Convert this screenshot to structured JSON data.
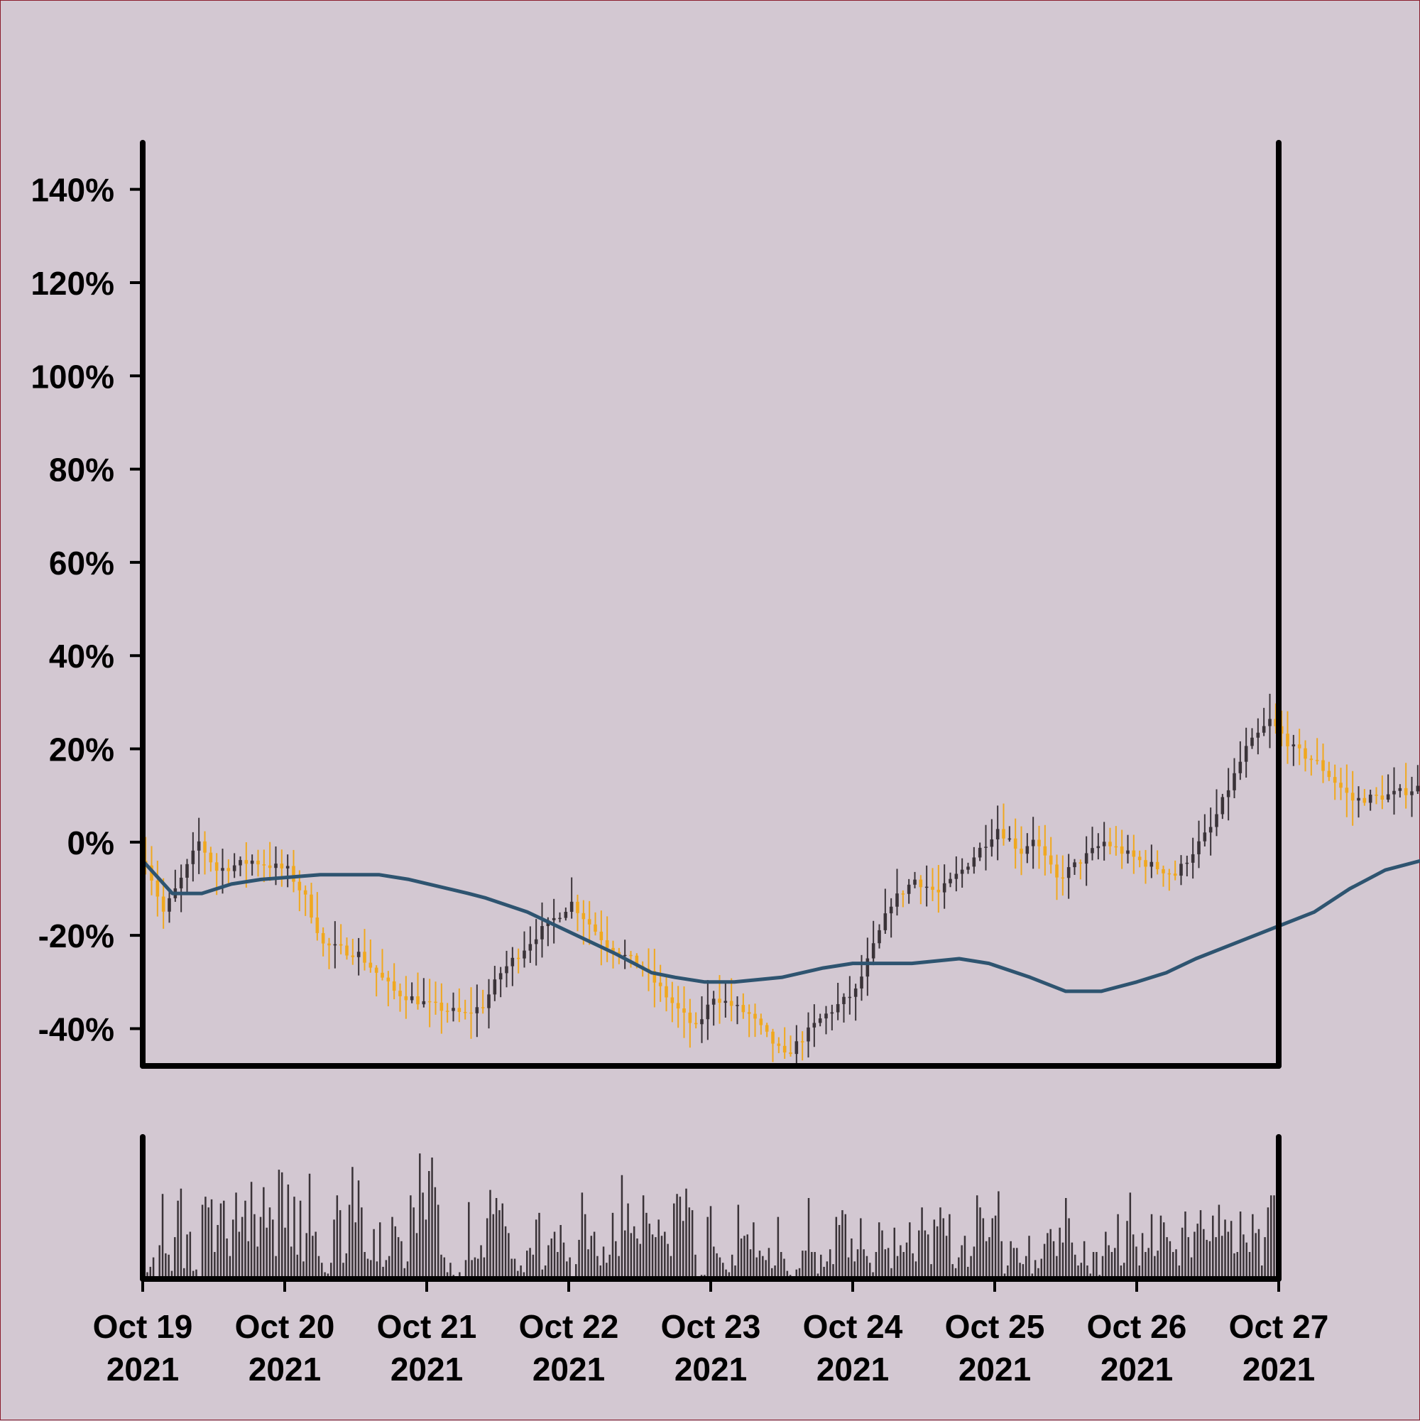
{
  "theme": {
    "background": "#d3c8d2",
    "frame_border": "#8a1c2c",
    "candle_up": "#3a3338",
    "candle_down": "#f0a81e",
    "moving_average": "#2e5470",
    "volume_bars": "#3a3338",
    "axes": "#000000"
  },
  "chart_data": {
    "type": "candlestick",
    "title": "",
    "xlabel": "",
    "ylabel": "",
    "ylim": [
      -48,
      150
    ],
    "yticks": [
      -40,
      -20,
      0,
      20,
      40,
      60,
      80,
      100,
      120,
      140
    ],
    "ytick_labels": [
      "-40%",
      "-20%",
      "0%",
      "20%",
      "40%",
      "60%",
      "80%",
      "100%",
      "120%",
      "140%"
    ],
    "xlim": [
      "2021-10-19",
      "2021-10-27"
    ],
    "xticks": [
      "2021-10-19",
      "2021-10-20",
      "2021-10-21",
      "2021-10-22",
      "2021-10-23",
      "2021-10-24",
      "2021-10-25",
      "2021-10-26",
      "2021-10-27"
    ],
    "xtick_labels": [
      {
        "line1": "Oct 19",
        "line2": "2021"
      },
      {
        "line1": "Oct 20",
        "line2": "2021"
      },
      {
        "line1": "Oct 21",
        "line2": "2021"
      },
      {
        "line1": "Oct 22",
        "line2": "2021"
      },
      {
        "line1": "Oct 23",
        "line2": "2021"
      },
      {
        "line1": "Oct 24",
        "line2": "2021"
      },
      {
        "line1": "Oct 25",
        "line2": "2021"
      },
      {
        "line1": "Oct 26",
        "line2": "2021"
      },
      {
        "line1": "Oct 27",
        "line2": "2021"
      }
    ],
    "bar_interval_hours": 1,
    "close_path": [
      [
        0,
        -4
      ],
      [
        3,
        -15
      ],
      [
        6,
        -8
      ],
      [
        9,
        0
      ],
      [
        12,
        -6
      ],
      [
        18,
        -4
      ],
      [
        24,
        -6
      ],
      [
        27,
        -12
      ],
      [
        30,
        -22
      ],
      [
        36,
        -24
      ],
      [
        42,
        -32
      ],
      [
        48,
        -35
      ],
      [
        54,
        -37
      ],
      [
        57,
        -35
      ],
      [
        60,
        -28
      ],
      [
        66,
        -20
      ],
      [
        72,
        -13
      ],
      [
        78,
        -22
      ],
      [
        84,
        -27
      ],
      [
        90,
        -36
      ],
      [
        93,
        -40
      ],
      [
        96,
        -33
      ],
      [
        102,
        -37
      ],
      [
        108,
        -46
      ],
      [
        114,
        -38
      ],
      [
        120,
        -32
      ],
      [
        126,
        -13
      ],
      [
        130,
        -8
      ],
      [
        134,
        -11
      ],
      [
        138,
        -6
      ],
      [
        144,
        3
      ],
      [
        148,
        -2
      ],
      [
        150,
        1
      ],
      [
        154,
        -8
      ],
      [
        158,
        -4
      ],
      [
        162,
        0
      ],
      [
        168,
        -4
      ],
      [
        174,
        -7
      ],
      [
        180,
        3
      ],
      [
        186,
        20
      ],
      [
        190,
        26
      ],
      [
        194,
        20
      ],
      [
        198,
        17
      ],
      [
        204,
        9
      ],
      [
        210,
        10
      ],
      [
        216,
        12
      ],
      [
        222,
        4
      ],
      [
        228,
        -5
      ],
      [
        234,
        4
      ],
      [
        240,
        0
      ],
      [
        246,
        -3
      ],
      [
        252,
        -6
      ],
      [
        258,
        -3
      ],
      [
        264,
        0
      ],
      [
        270,
        -6
      ]
    ],
    "moving_average": [
      [
        0,
        -4
      ],
      [
        5,
        -11
      ],
      [
        10,
        -11
      ],
      [
        15,
        -9
      ],
      [
        20,
        -8
      ],
      [
        30,
        -7
      ],
      [
        40,
        -7
      ],
      [
        45,
        -8
      ],
      [
        55,
        -11
      ],
      [
        58,
        -12
      ],
      [
        65,
        -15
      ],
      [
        70,
        -18
      ],
      [
        80,
        -24
      ],
      [
        86,
        -28
      ],
      [
        90,
        -29
      ],
      [
        95,
        -30
      ],
      [
        100,
        -30
      ],
      [
        108,
        -29
      ],
      [
        115,
        -27
      ],
      [
        120,
        -26
      ],
      [
        126,
        -26
      ],
      [
        130,
        -26
      ],
      [
        138,
        -25
      ],
      [
        143,
        -26
      ],
      [
        150,
        -29
      ],
      [
        156,
        -32
      ],
      [
        162,
        -32
      ],
      [
        168,
        -30
      ],
      [
        173,
        -28
      ],
      [
        178,
        -25
      ],
      [
        186,
        -21
      ],
      [
        192,
        -18
      ],
      [
        198,
        -15
      ],
      [
        204,
        -10
      ],
      [
        210,
        -6
      ],
      [
        216,
        -4
      ],
      [
        220,
        -4
      ],
      [
        224,
        -3
      ],
      [
        230,
        0
      ],
      [
        237,
        2
      ],
      [
        243,
        3
      ],
      [
        250,
        6
      ],
      [
        256,
        7.5
      ],
      [
        262,
        8
      ],
      [
        268,
        8
      ],
      [
        275,
        9
      ],
      [
        280,
        9
      ],
      [
        286,
        8
      ],
      [
        290,
        6
      ]
    ],
    "volume": {
      "ylim": [
        0,
        100
      ],
      "values": [
        52,
        5,
        9,
        16,
        1,
        25,
        63,
        19,
        18,
        6,
        31,
        58,
        67,
        8,
        33,
        35,
        6,
        7,
        0,
        55,
        61,
        53,
        59,
        20,
        40,
        56,
        58,
        30,
        17,
        44,
        64,
        35,
        46,
        58,
        28,
        72,
        48,
        24,
        46,
        68,
        38,
        53,
        44,
        17,
        81,
        79,
        38,
        70,
        24,
        61,
        18,
        58,
        13,
        34,
        78,
        32,
        35,
        17,
        12,
        5,
        4,
        12,
        44,
        62,
        51,
        12,
        19,
        55,
        83,
        42,
        73,
        53,
        20,
        15,
        14,
        37,
        13,
        42,
        9,
        14,
        17,
        46,
        39,
        31,
        28,
        8,
        13,
        62,
        53,
        34,
        93,
        64,
        44,
        80,
        90,
        68,
        55,
        18,
        16,
        5,
        12,
        3,
        2,
        5,
        2,
        14,
        57,
        14,
        16,
        15,
        25,
        16,
        45,
        66,
        48,
        60,
        51,
        56,
        39,
        34,
        15,
        15,
        6,
        10,
        5,
        21,
        23,
        18,
        44,
        49,
        7,
        10,
        25,
        30,
        35,
        20,
        40,
        27,
        13,
        16,
        2,
        11,
        29,
        64,
        48,
        22,
        32,
        35,
        17,
        10,
        24,
        12,
        18,
        49,
        28,
        17,
        77,
        36,
        56,
        34,
        39,
        30,
        26,
        62,
        49,
        41,
        33,
        31,
        44,
        32,
        35,
        26,
        17,
        56,
        63,
        61,
        43,
        67,
        53,
        51,
        18,
        0,
        3,
        3,
        46,
        54,
        24,
        19,
        16,
        12,
        7,
        5,
        18,
        10,
        55,
        30,
        32,
        33,
        22,
        42,
        16,
        21,
        17,
        14,
        23,
        8,
        10,
        46,
        20,
        15,
        6,
        3,
        1,
        7,
        8,
        21,
        21,
        60,
        20,
        20,
        4,
        18,
        9,
        13,
        22,
        11,
        46,
        40,
        51,
        48,
        16,
        30,
        13,
        22,
        45,
        22,
        17,
        12,
        5,
        20,
        42,
        36,
        22,
        23,
        8,
        38,
        17,
        25,
        20,
        27,
        42,
        19,
        13,
        36,
        53,
        36,
        33,
        11,
        44,
        39,
        53,
        45,
        32,
        48,
        11,
        8,
        16,
        25,
        32,
        9,
        17,
        24,
        62,
        53,
        45,
        28,
        31,
        45,
        47,
        65,
        28,
        4,
        10,
        28,
        23,
        23,
        12,
        11,
        17,
        32,
        4,
        14,
        8,
        15,
        26,
        34,
        37,
        28,
        17,
        38,
        27,
        60,
        45,
        27,
        18,
        10,
        12,
        28,
        10,
        4,
        20,
        20,
        3,
        17,
        35,
        25,
        20,
        23,
        48,
        10,
        12,
        43,
        64,
        33,
        24,
        10,
        34,
        20,
        23,
        48,
        17,
        21,
        47,
        42,
        31,
        28,
        20,
        22,
        10,
        38,
        50,
        31,
        16,
        35,
        41,
        51,
        37,
        29,
        28,
        47,
        31,
        55,
        32,
        44,
        35,
        43,
        19,
        20,
        50,
        33,
        27,
        20,
        48,
        34,
        37,
        10,
        31,
        53,
        62,
        62,
        18
      ]
    }
  }
}
